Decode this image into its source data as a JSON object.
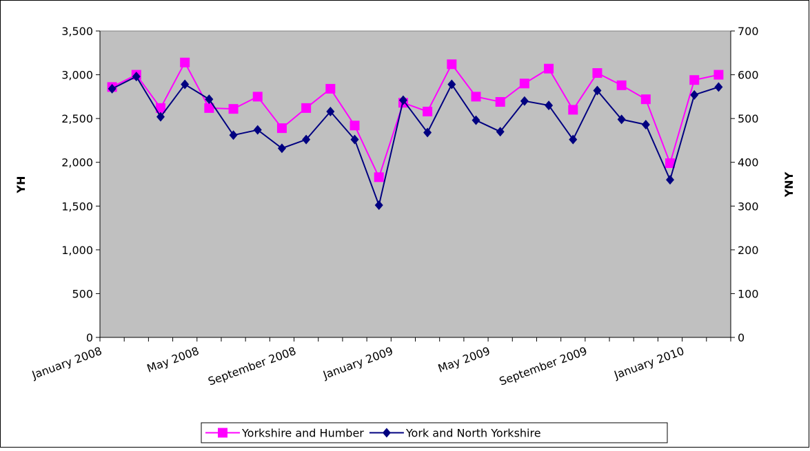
{
  "chart_data": {
    "type": "line",
    "categories": [
      "January 2008",
      null,
      null,
      null,
      "May 2008",
      null,
      null,
      null,
      "September 2008",
      null,
      null,
      null,
      "January 2009",
      null,
      null,
      null,
      "May 2009",
      null,
      null,
      null,
      "September 2009",
      null,
      null,
      null,
      "January 2010",
      null
    ],
    "y_label": "YH",
    "y2_label": "YNY",
    "ylim": [
      0,
      3500
    ],
    "yticks": [
      0,
      500,
      {
        "value": 1000,
        "label": "1,000"
      },
      {
        "value": 1500,
        "label": "1,500"
      },
      {
        "value": 2000,
        "label": "2,000"
      },
      {
        "value": 2500,
        "label": "2,500"
      },
      {
        "value": 3000,
        "label": "3,000"
      },
      {
        "value": 3500,
        "label": "3,500"
      }
    ],
    "y2lim": [
      0,
      700
    ],
    "y2ticks": [
      0,
      100,
      200,
      300,
      400,
      500,
      600,
      700
    ],
    "grid": false,
    "legend": "bottom",
    "series": [
      {
        "name": "Yorkshire and Humber",
        "color": "#ff00ff",
        "marker": "square",
        "values": [
          2860,
          3000,
          2620,
          3140,
          2620,
          2610,
          2750,
          2390,
          2620,
          2840,
          2420,
          1830,
          2680,
          2580,
          3120,
          2750,
          2690,
          2900,
          3070,
          2600,
          3020,
          2880,
          2720,
          1990,
          2940,
          3000
        ]
      },
      {
        "name": "York and North Yorkshire",
        "color": "#000080",
        "marker": "diamond",
        "axis": "y2",
        "values": [
          568,
          596,
          504,
          578,
          544,
          462,
          474,
          432,
          452,
          516,
          452,
          302,
          542,
          468,
          578,
          496,
          470,
          540,
          530,
          452,
          564,
          498,
          486,
          360,
          554,
          572
        ]
      }
    ]
  }
}
